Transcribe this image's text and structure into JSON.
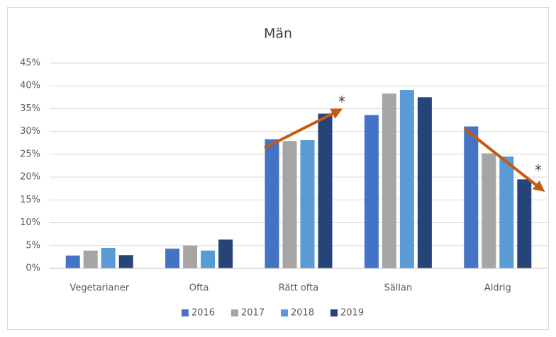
{
  "chart_data": {
    "type": "bar",
    "title": "Män",
    "categories": [
      "Vegetarianer",
      "Ofta",
      "Rätt ofta",
      "Sällan",
      "Aldrig"
    ],
    "series": [
      {
        "name": "2016",
        "color": "#4472c4",
        "values": [
          2.8,
          4.3,
          28.3,
          33.6,
          31.1
        ]
      },
      {
        "name": "2017",
        "color": "#a5a5a5",
        "values": [
          3.9,
          5.0,
          27.9,
          38.3,
          25.2
        ]
      },
      {
        "name": "2018",
        "color": "#5b9bd5",
        "values": [
          4.5,
          3.9,
          28.1,
          39.1,
          24.5
        ]
      },
      {
        "name": "2019",
        "color": "#264478",
        "values": [
          2.9,
          6.3,
          33.9,
          37.5,
          19.5
        ]
      }
    ],
    "ylim": [
      0,
      45
    ],
    "yticks": [
      {
        "value": 0,
        "label": "0%"
      },
      {
        "value": 5,
        "label": "5%"
      },
      {
        "value": 10,
        "label": "10%"
      },
      {
        "value": 15,
        "label": "15%"
      },
      {
        "value": 20,
        "label": "20%"
      },
      {
        "value": 25,
        "label": "25%"
      },
      {
        "value": 30,
        "label": "30%"
      },
      {
        "value": 35,
        "label": "35%"
      },
      {
        "value": 40,
        "label": "40%"
      },
      {
        "value": 45,
        "label": "45%"
      }
    ],
    "grid": true,
    "annotations": [
      "*",
      "*"
    ],
    "legend": "bottom"
  }
}
